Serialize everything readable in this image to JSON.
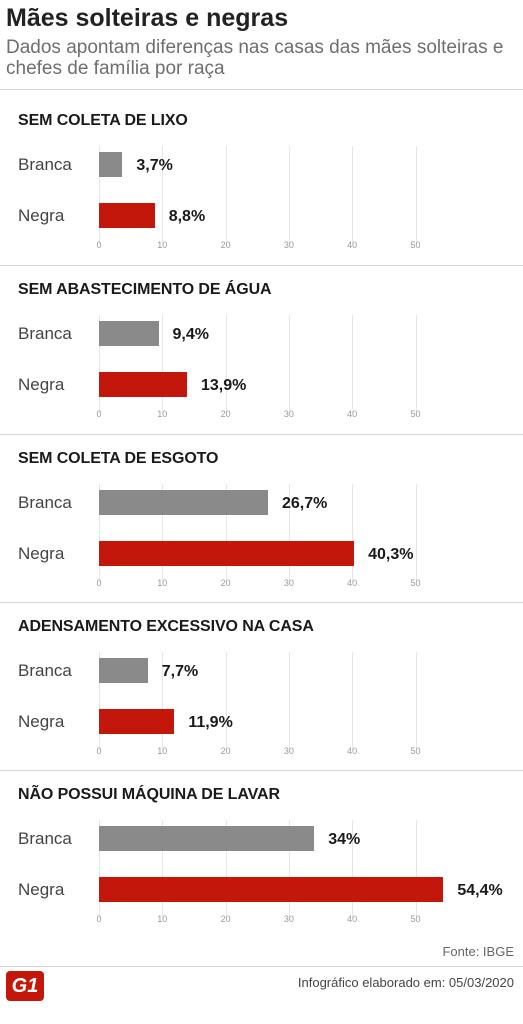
{
  "header": {
    "title": "Mães solteiras e negras",
    "subtitle": "Dados apontam diferenças nas casas das mães solteiras e chefes de família por raça"
  },
  "colors": {
    "branca": "#8a8a8a",
    "negra": "#c4170c"
  },
  "chart_data": [
    {
      "type": "bar",
      "orientation": "horizontal",
      "title": "SEM COLETA DE LIXO",
      "categories": [
        "Branca",
        "Negra"
      ],
      "values": [
        3.7,
        8.8
      ],
      "labels": [
        "3,7%",
        "8,8%"
      ],
      "xlim": [
        0,
        55
      ],
      "ticks": [
        "0",
        "10",
        "20",
        "30",
        "40",
        "50"
      ],
      "grid": true
    },
    {
      "type": "bar",
      "orientation": "horizontal",
      "title": "SEM ABASTECIMENTO DE ÁGUA",
      "categories": [
        "Branca",
        "Negra"
      ],
      "values": [
        9.4,
        13.9
      ],
      "labels": [
        "9,4%",
        "13,9%"
      ],
      "xlim": [
        0,
        55
      ],
      "ticks": [
        "0",
        "10",
        "20",
        "30",
        "40",
        "50"
      ],
      "grid": true
    },
    {
      "type": "bar",
      "orientation": "horizontal",
      "title": "SEM COLETA DE ESGOTO",
      "categories": [
        "Branca",
        "Negra"
      ],
      "values": [
        26.7,
        40.3
      ],
      "labels": [
        "26,7%",
        "40,3%"
      ],
      "xlim": [
        0,
        55
      ],
      "ticks": [
        "0",
        "10",
        "20",
        "30",
        "40",
        "50"
      ],
      "grid": true
    },
    {
      "type": "bar",
      "orientation": "horizontal",
      "title": "ADENSAMENTO EXCESSIVO NA CASA",
      "categories": [
        "Branca",
        "Negra"
      ],
      "values": [
        7.7,
        11.9
      ],
      "labels": [
        "7,7%",
        "11,9%"
      ],
      "xlim": [
        0,
        55
      ],
      "ticks": [
        "0",
        "10",
        "20",
        "30",
        "40",
        "50"
      ],
      "grid": true
    },
    {
      "type": "bar",
      "orientation": "horizontal",
      "title": "NÃO POSSUI MÁQUINA DE LAVAR",
      "categories": [
        "Branca",
        "Negra"
      ],
      "values": [
        34,
        54.4
      ],
      "labels": [
        "34%",
        "54,4%"
      ],
      "xlim": [
        0,
        55
      ],
      "ticks": [
        "0",
        "10",
        "20",
        "30",
        "40",
        "50"
      ],
      "grid": true
    }
  ],
  "footer": {
    "source": "Fonte: IBGE",
    "credit": "Infográfico elaborado em: 05/03/2020",
    "logo": "G1"
  }
}
